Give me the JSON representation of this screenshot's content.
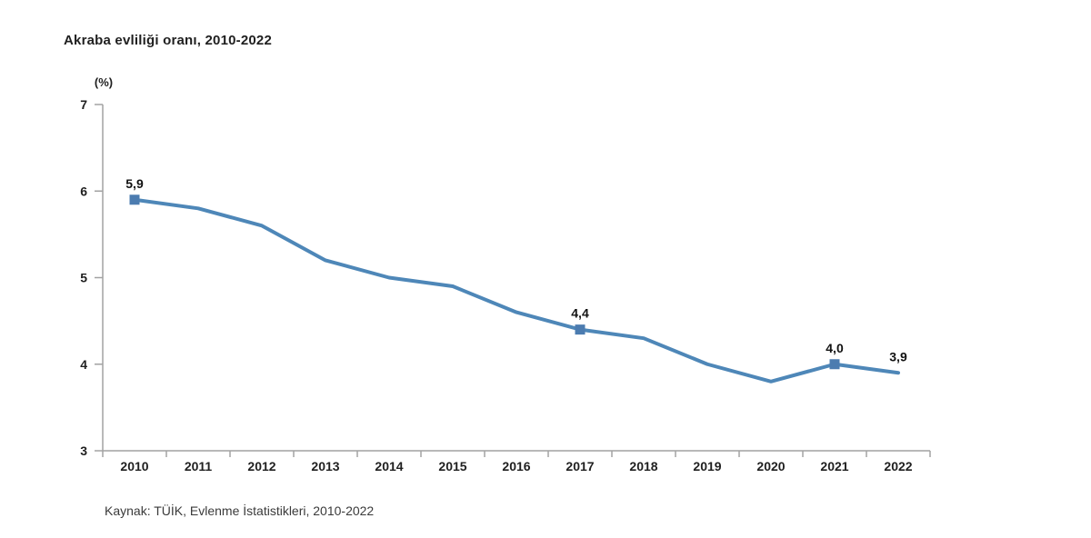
{
  "chart_data": {
    "type": "line",
    "title": "Akraba evliliği oranı, 2010-2022",
    "unit_label": "(%)",
    "source": "Kaynak: TÜİK, Evlenme İstatistikleri, 2010-2022",
    "categories": [
      "2010",
      "2011",
      "2012",
      "2013",
      "2014",
      "2015",
      "2016",
      "2017",
      "2018",
      "2019",
      "2020",
      "2021",
      "2022"
    ],
    "series": [
      {
        "name": "Akraba evliliği oranı",
        "values": [
          5.9,
          5.8,
          5.6,
          5.2,
          5.0,
          4.9,
          4.6,
          4.4,
          4.3,
          4.0,
          3.8,
          4.0,
          3.9
        ]
      }
    ],
    "point_labels": [
      {
        "index": 0,
        "text": "5,9",
        "marker": true
      },
      {
        "index": 7,
        "text": "4,4",
        "marker": true
      },
      {
        "index": 11,
        "text": "4,0",
        "marker": true
      },
      {
        "index": 12,
        "text": "3,9",
        "marker": false
      }
    ],
    "ylim": [
      3,
      7
    ],
    "yticks": [
      "7",
      "6",
      "5",
      "4",
      "3"
    ],
    "ytick_values": [
      7,
      6,
      5,
      4,
      3
    ],
    "grid": false,
    "legend_position": "none",
    "colors": {
      "line": "#4e87b8",
      "marker": "#4c7cb0",
      "axis": "#a2a2a2",
      "tick_label": "#1f1f1f",
      "data_label": "#111111"
    }
  }
}
